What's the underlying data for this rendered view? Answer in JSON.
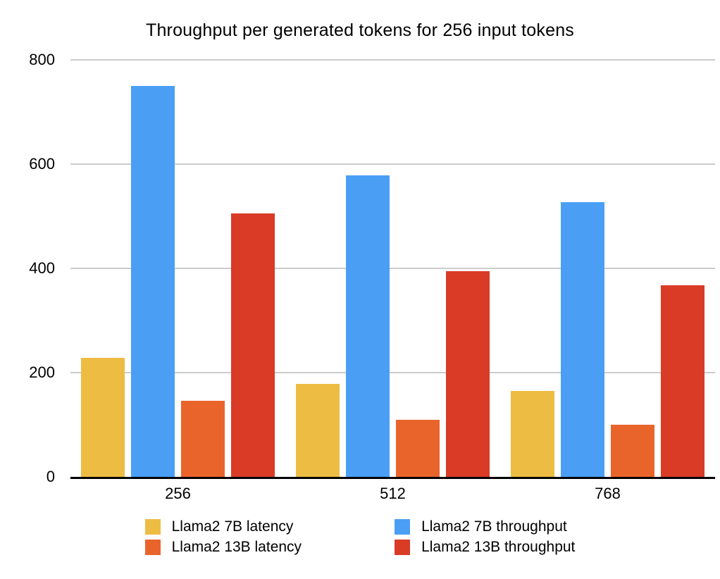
{
  "chart_data": {
    "type": "bar",
    "title": "Throughput per generated tokens for 256 input tokens",
    "categories": [
      "256",
      "512",
      "768"
    ],
    "series": [
      {
        "key": "llama2-7b-latency",
        "name": "Llama2 7B latency",
        "color": "#EDBC43",
        "values": [
          228,
          178,
          165
        ]
      },
      {
        "key": "llama2-7b-throughput",
        "name": "Llama2 7B throughput",
        "color": "#4A9FF5",
        "values": [
          750,
          578,
          527
        ]
      },
      {
        "key": "llama2-13b-latency",
        "name": "Llama2 13B latency",
        "color": "#E9642B",
        "values": [
          146,
          110,
          100
        ]
      },
      {
        "key": "llama2-13b-throughput",
        "name": "Llama2 13B throughput",
        "color": "#D93B27",
        "values": [
          505,
          395,
          368
        ]
      }
    ],
    "xlabel": "",
    "ylabel": "",
    "ylim": [
      0,
      800
    ],
    "yticks": [
      0,
      200,
      400,
      600,
      800
    ],
    "grid": true,
    "legend_position": "bottom",
    "legend_columns": [
      [
        0,
        2
      ],
      [
        1,
        3
      ]
    ],
    "colors": {
      "grid": "#CCCCCC",
      "axis": "#000000",
      "text": "#000000",
      "background": "#FFFFFF"
    }
  }
}
